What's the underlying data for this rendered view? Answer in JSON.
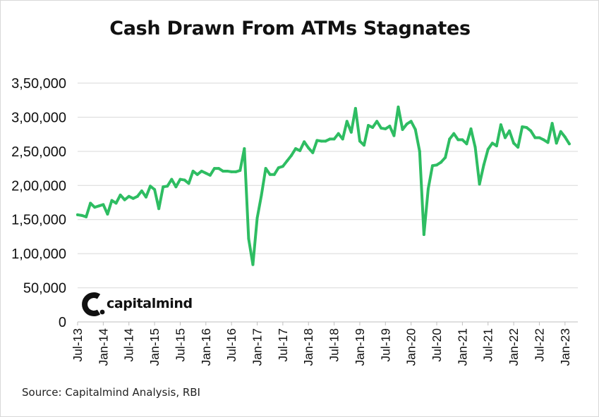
{
  "chart_data": {
    "type": "line",
    "title": "Cash Drawn From ATMs Stagnates",
    "source": "Source: Capitalmind Analysis, RBI",
    "logo_text": "capitalmind",
    "line_color": "#2ebd62",
    "gridline_color": "#d9d9d9",
    "xlabel": "",
    "ylabel": "",
    "ylim": [
      0,
      350000
    ],
    "y_ticks": [
      {
        "value": 0,
        "label": "0"
      },
      {
        "value": 50000,
        "label": "50,000"
      },
      {
        "value": 100000,
        "label": "1,00,000"
      },
      {
        "value": 150000,
        "label": "1,50,000"
      },
      {
        "value": 200000,
        "label": "2,00,000"
      },
      {
        "value": 250000,
        "label": "2,50,000"
      },
      {
        "value": 300000,
        "label": "3,00,000"
      },
      {
        "value": 350000,
        "label": "3,50,000"
      }
    ],
    "x_range": [
      0,
      117
    ],
    "x_ticks": [
      {
        "index": 0,
        "label": "Jul-13"
      },
      {
        "index": 6,
        "label": "Jan-14"
      },
      {
        "index": 12,
        "label": "Jul-14"
      },
      {
        "index": 18,
        "label": "Jan-15"
      },
      {
        "index": 24,
        "label": "Jul-15"
      },
      {
        "index": 30,
        "label": "Jan-16"
      },
      {
        "index": 36,
        "label": "Jul-16"
      },
      {
        "index": 42,
        "label": "Jan-17"
      },
      {
        "index": 48,
        "label": "Jul-17"
      },
      {
        "index": 54,
        "label": "Jan-18"
      },
      {
        "index": 60,
        "label": "Jul-18"
      },
      {
        "index": 66,
        "label": "Jan-19"
      },
      {
        "index": 72,
        "label": "Jul-19"
      },
      {
        "index": 78,
        "label": "Jan-20"
      },
      {
        "index": 84,
        "label": "Jul-20"
      },
      {
        "index": 90,
        "label": "Jan-21"
      },
      {
        "index": 96,
        "label": "Jul-21"
      },
      {
        "index": 102,
        "label": "Jan-22"
      },
      {
        "index": 108,
        "label": "Jul-22"
      },
      {
        "index": 114,
        "label": "Jan-23"
      }
    ],
    "series": [
      {
        "name": "Cash drawn from ATMs",
        "x_start": "Jul-13",
        "frequency": "monthly",
        "values": [
          157000,
          156000,
          154000,
          174000,
          168000,
          170000,
          172000,
          158000,
          178000,
          174000,
          186000,
          179000,
          184000,
          181000,
          184000,
          192000,
          183000,
          199000,
          194000,
          166000,
          198000,
          199000,
          209000,
          198000,
          209000,
          208000,
          203000,
          221000,
          216000,
          221000,
          218000,
          215000,
          225000,
          225000,
          221000,
          221000,
          220000,
          220000,
          222000,
          254000,
          122000,
          84000,
          152000,
          186000,
          225000,
          216000,
          216000,
          226000,
          228000,
          236000,
          244000,
          254000,
          251000,
          264000,
          255000,
          248000,
          266000,
          265000,
          265000,
          268000,
          268000,
          276000,
          268000,
          294000,
          278000,
          313000,
          265000,
          259000,
          288000,
          285000,
          294000,
          284000,
          283000,
          287000,
          273000,
          315000,
          282000,
          290000,
          294000,
          282000,
          250000,
          128000,
          195000,
          229000,
          230000,
          234000,
          241000,
          268000,
          276000,
          267000,
          267000,
          261000,
          283000,
          256000,
          202000,
          230000,
          253000,
          262000,
          258000,
          289000,
          270000,
          280000,
          262000,
          256000,
          286000,
          285000,
          280000,
          270000,
          270000,
          267000,
          263000,
          291000,
          262000,
          279000,
          271000,
          261000
        ]
      }
    ]
  }
}
